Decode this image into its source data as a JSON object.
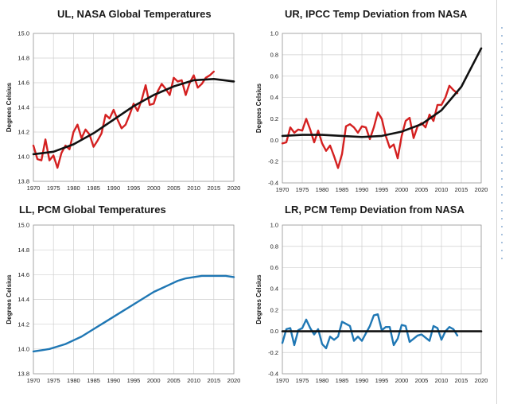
{
  "chart_data": [
    {
      "type": "line",
      "title": "UL, NASA Global Temperatures",
      "ylabel": "Degrees Celsius",
      "xlim": [
        1970,
        2020
      ],
      "ylim": [
        13.8,
        15.0
      ],
      "xticks": [
        1970,
        1975,
        1980,
        1985,
        1990,
        1995,
        2000,
        2005,
        2010,
        2015,
        2020
      ],
      "yticks": [
        13.8,
        14.0,
        14.2,
        14.4,
        14.6,
        14.8,
        15.0
      ],
      "ytick_labels": [
        "13.8",
        "14.0",
        "14.2",
        "14.4",
        "14.6",
        "14.8",
        "15.0"
      ],
      "grid": true,
      "legend": "none",
      "series": [
        {
          "color": "#d42020",
          "x": [
            1970,
            1971,
            1972,
            1973,
            1974,
            1975,
            1976,
            1977,
            1978,
            1979,
            1980,
            1981,
            1982,
            1983,
            1984,
            1985,
            1986,
            1987,
            1988,
            1989,
            1990,
            1991,
            1992,
            1993,
            1994,
            1995,
            1996,
            1997,
            1998,
            1999,
            2000,
            2001,
            2002,
            2003,
            2004,
            2005,
            2006,
            2007,
            2008,
            2009,
            2010,
            2011,
            2012,
            2013,
            2014,
            2015
          ],
          "y": [
            14.09,
            13.98,
            13.97,
            14.14,
            13.97,
            14.01,
            13.91,
            14.03,
            14.09,
            14.06,
            14.2,
            14.26,
            14.15,
            14.22,
            14.18,
            14.08,
            14.13,
            14.19,
            14.34,
            14.31,
            14.38,
            14.3,
            14.23,
            14.26,
            14.34,
            14.43,
            14.37,
            14.46,
            14.58,
            14.42,
            14.43,
            14.53,
            14.59,
            14.55,
            14.5,
            14.64,
            14.61,
            14.62,
            14.5,
            14.6,
            14.66,
            14.56,
            14.59,
            14.64,
            14.66,
            14.69
          ]
        },
        {
          "color": "#111111",
          "x": [
            1970,
            1975,
            1980,
            1985,
            1990,
            1995,
            2000,
            2005,
            2010,
            2015,
            2020
          ],
          "y": [
            14.02,
            14.04,
            14.1,
            14.19,
            14.3,
            14.41,
            14.5,
            14.57,
            14.62,
            14.63,
            14.61
          ]
        }
      ]
    },
    {
      "type": "line",
      "title": "UR, IPCC Temp Deviation from NASA",
      "ylabel": "Degrees Celsius",
      "xlim": [
        1970,
        2020
      ],
      "ylim": [
        -0.4,
        1.0
      ],
      "xticks": [
        1970,
        1975,
        1980,
        1985,
        1990,
        1995,
        2000,
        2005,
        2010,
        2015,
        2020
      ],
      "yticks": [
        -0.4,
        -0.2,
        0.0,
        0.2,
        0.4,
        0.6,
        0.8,
        1.0
      ],
      "ytick_labels": [
        "-0.4",
        "-0.2",
        "0.0",
        "0.2",
        "0.4",
        "0.6",
        "0.8",
        "1.0"
      ],
      "grid": true,
      "legend": "none",
      "series": [
        {
          "color": "#d42020",
          "x": [
            1970,
            1971,
            1972,
            1973,
            1974,
            1975,
            1976,
            1977,
            1978,
            1979,
            1980,
            1981,
            1982,
            1983,
            1984,
            1985,
            1986,
            1987,
            1988,
            1989,
            1990,
            1991,
            1992,
            1993,
            1994,
            1995,
            1996,
            1997,
            1998,
            1999,
            2000,
            2001,
            2002,
            2003,
            2004,
            2005,
            2006,
            2007,
            2008,
            2009,
            2010,
            2011,
            2012,
            2013,
            2014
          ],
          "y": [
            -0.03,
            -0.02,
            0.12,
            0.07,
            0.1,
            0.09,
            0.2,
            0.1,
            -0.02,
            0.09,
            -0.03,
            -0.1,
            -0.05,
            -0.15,
            -0.26,
            -0.13,
            0.13,
            0.15,
            0.12,
            0.07,
            0.13,
            0.12,
            0.01,
            0.12,
            0.26,
            0.2,
            0.04,
            -0.07,
            -0.04,
            -0.17,
            0.04,
            0.18,
            0.21,
            0.02,
            0.13,
            0.16,
            0.12,
            0.24,
            0.18,
            0.33,
            0.33,
            0.4,
            0.51,
            0.47,
            0.44
          ]
        },
        {
          "color": "#111111",
          "x": [
            1970,
            1975,
            1980,
            1985,
            1990,
            1995,
            2000,
            2005,
            2010,
            2015,
            2020
          ],
          "y": [
            0.04,
            0.05,
            0.05,
            0.04,
            0.03,
            0.04,
            0.08,
            0.15,
            0.28,
            0.5,
            0.86
          ]
        }
      ]
    },
    {
      "type": "line",
      "title": "LL, PCM Global Temperatures",
      "ylabel": "Degrees Celsius",
      "xlim": [
        1970,
        2020
      ],
      "ylim": [
        13.8,
        15.0
      ],
      "xticks": [
        1970,
        1975,
        1980,
        1985,
        1990,
        1995,
        2000,
        2005,
        2010,
        2015,
        2020
      ],
      "yticks": [
        13.8,
        14.0,
        14.2,
        14.4,
        14.6,
        14.8,
        15.0
      ],
      "ytick_labels": [
        "13.8",
        "14.0",
        "14.2",
        "14.4",
        "14.6",
        "14.8",
        "15.0"
      ],
      "grid": true,
      "legend": "none",
      "series": [
        {
          "color": "#1f77b4",
          "x": [
            1970,
            1972,
            1974,
            1976,
            1978,
            1980,
            1982,
            1984,
            1986,
            1988,
            1990,
            1992,
            1994,
            1996,
            1998,
            2000,
            2002,
            2004,
            2006,
            2008,
            2010,
            2012,
            2014,
            2016,
            2018,
            2020
          ],
          "y": [
            13.98,
            13.99,
            14.0,
            14.02,
            14.04,
            14.07,
            14.1,
            14.14,
            14.18,
            14.22,
            14.26,
            14.3,
            14.34,
            14.38,
            14.42,
            14.46,
            14.49,
            14.52,
            14.55,
            14.57,
            14.58,
            14.59,
            14.59,
            14.59,
            14.59,
            14.58
          ]
        }
      ]
    },
    {
      "type": "line",
      "title": "LR, PCM Temp Deviation from NASA",
      "ylabel": "Degrees Celsius",
      "xlim": [
        1970,
        2020
      ],
      "ylim": [
        -0.4,
        1.0
      ],
      "xticks": [
        1970,
        1975,
        1980,
        1985,
        1990,
        1995,
        2000,
        2005,
        2010,
        2015,
        2020
      ],
      "yticks": [
        -0.4,
        -0.2,
        0.0,
        0.2,
        0.4,
        0.6,
        0.8,
        1.0
      ],
      "ytick_labels": [
        "-0.4",
        "-0.2",
        "0.0",
        "0.2",
        "0.4",
        "0.6",
        "0.8",
        "1.0"
      ],
      "grid": true,
      "legend": "none",
      "series": [
        {
          "color": "#1f77b4",
          "x": [
            1970,
            1971,
            1972,
            1973,
            1974,
            1975,
            1976,
            1977,
            1978,
            1979,
            1980,
            1981,
            1982,
            1983,
            1984,
            1985,
            1986,
            1987,
            1988,
            1989,
            1990,
            1991,
            1992,
            1993,
            1994,
            1995,
            1996,
            1997,
            1998,
            1999,
            2000,
            2001,
            2002,
            2003,
            2004,
            2005,
            2006,
            2007,
            2008,
            2009,
            2010,
            2011,
            2012,
            2013,
            2014
          ],
          "y": [
            -0.11,
            0.02,
            0.03,
            -0.13,
            0.01,
            0.03,
            0.11,
            0.03,
            -0.03,
            0.02,
            -0.12,
            -0.16,
            -0.05,
            -0.08,
            -0.05,
            0.09,
            0.07,
            0.05,
            -0.09,
            -0.05,
            -0.09,
            -0.02,
            0.05,
            0.15,
            0.16,
            0.01,
            0.04,
            0.04,
            -0.13,
            -0.07,
            0.06,
            0.05,
            -0.1,
            -0.07,
            -0.04,
            -0.03,
            -0.06,
            -0.09,
            0.05,
            0.03,
            -0.08,
            0.0,
            0.04,
            0.02,
            -0.04
          ]
        },
        {
          "color": "#111111",
          "x": [
            1970,
            2020
          ],
          "y": [
            0.0,
            0.0
          ]
        }
      ]
    }
  ]
}
